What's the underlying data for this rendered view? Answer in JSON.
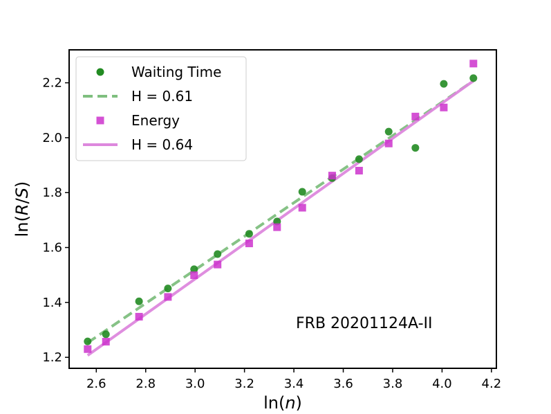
{
  "chart_data": {
    "type": "scatter",
    "annotation": "FRB 20201124A-II",
    "xlim": [
      2.49,
      4.22
    ],
    "ylim": [
      1.16,
      2.32
    ],
    "xticks": [
      "2.6",
      "2.8",
      "3.0",
      "3.2",
      "3.4",
      "3.6",
      "3.8",
      "4.0",
      "4.2"
    ],
    "yticks": [
      "1.2",
      "1.4",
      "1.6",
      "1.8",
      "2.0",
      "2.2"
    ],
    "legend_position": "top-left",
    "series": [
      {
        "name": "Waiting Time",
        "kind": "scatter",
        "marker": "circle",
        "color": "#228b22",
        "x": [
          2.565,
          2.639,
          2.773,
          2.89,
          2.996,
          3.091,
          3.219,
          3.332,
          3.434,
          3.555,
          3.664,
          3.784,
          3.892,
          4.007,
          4.127
        ],
        "y": [
          1.258,
          1.284,
          1.404,
          1.451,
          1.521,
          1.576,
          1.65,
          1.695,
          1.803,
          1.853,
          1.922,
          2.022,
          1.963,
          2.196,
          2.217
        ]
      },
      {
        "name": "H = 0.61",
        "kind": "line",
        "dash": "dashed",
        "color": "#7fbf7f",
        "x": [
          2.565,
          4.127
        ],
        "y": [
          1.253,
          2.207
        ]
      },
      {
        "name": "Energy",
        "kind": "scatter",
        "marker": "square",
        "color": "#cc33cc",
        "x": [
          2.565,
          2.639,
          2.773,
          2.89,
          2.996,
          3.091,
          3.219,
          3.332,
          3.434,
          3.555,
          3.664,
          3.784,
          3.892,
          4.007,
          4.127
        ],
        "y": [
          1.23,
          1.257,
          1.348,
          1.42,
          1.499,
          1.538,
          1.615,
          1.674,
          1.745,
          1.862,
          1.88,
          1.979,
          2.077,
          2.11,
          2.27
        ]
      },
      {
        "name": "H = 0.64",
        "kind": "line",
        "dash": "solid",
        "color": "#dd88dd",
        "x": [
          2.565,
          4.127
        ],
        "y": [
          1.207,
          2.207
        ]
      }
    ]
  }
}
